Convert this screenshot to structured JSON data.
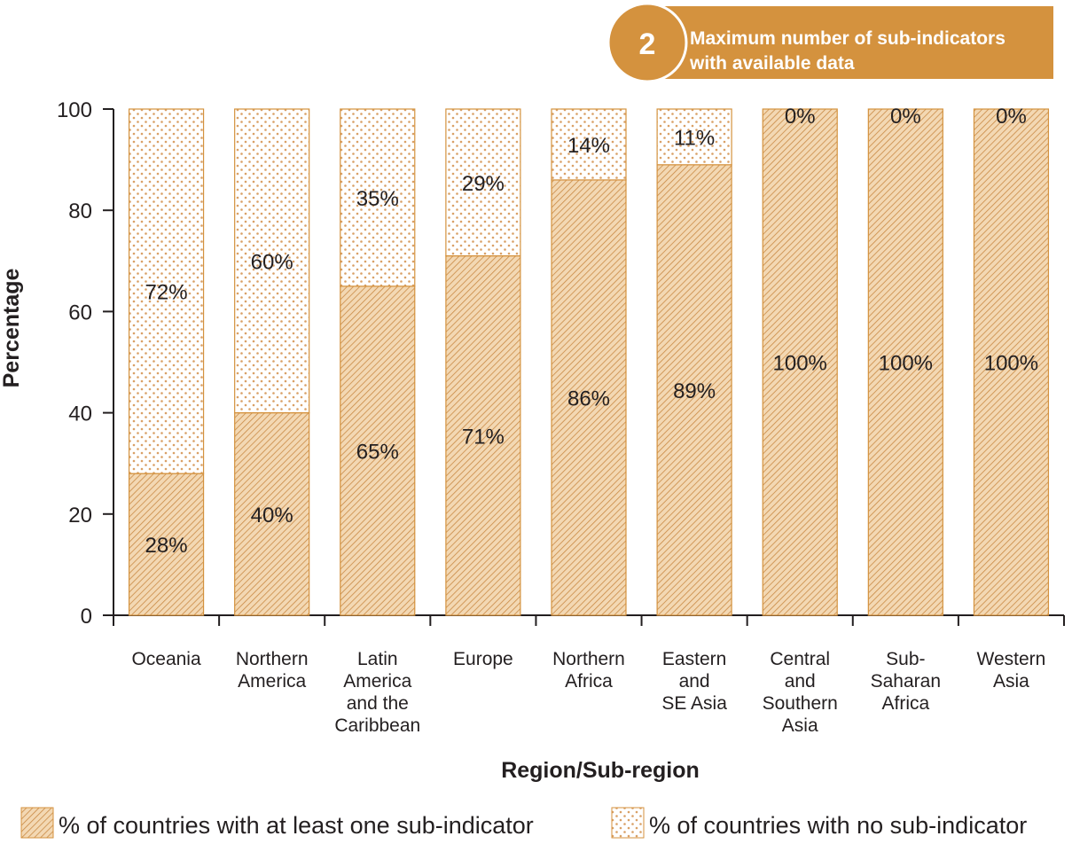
{
  "badge": {
    "number": "2",
    "text_line1": "Maximum number of sub-indicators",
    "text_line2": "with available data",
    "color": "#d4923e"
  },
  "chart_data": {
    "type": "bar",
    "stacked": true,
    "categories": [
      [
        "Oceania"
      ],
      [
        "Northern",
        "America"
      ],
      [
        "Latin",
        "America",
        "and the",
        "Caribbean"
      ],
      [
        "Europe"
      ],
      [
        "Northern",
        "Africa"
      ],
      [
        "Eastern",
        "and",
        "SE Asia"
      ],
      [
        "Central",
        "and",
        "Southern",
        "Asia"
      ],
      [
        "Sub-",
        "Saharan",
        "Africa"
      ],
      [
        "Western",
        "Asia"
      ]
    ],
    "series": [
      {
        "name": "% of countries with at least one sub-indicator",
        "values": [
          28,
          40,
          65,
          71,
          86,
          89,
          100,
          100,
          100
        ],
        "labels": [
          "28%",
          "40%",
          "65%",
          "71%",
          "86%",
          "89%",
          "100%",
          "100%",
          "100%"
        ],
        "pattern": "diagonal-hatch",
        "color": "#d4923e"
      },
      {
        "name": "% of countries with no sub-indicator",
        "values": [
          72,
          60,
          35,
          29,
          14,
          11,
          0,
          0,
          0
        ],
        "labels": [
          "72%",
          "60%",
          "35%",
          "29%",
          "14%",
          "11%",
          "0%",
          "0%",
          "0%"
        ],
        "pattern": "dots",
        "color": "#d4923e"
      }
    ],
    "xlabel": "Region/Sub-region",
    "ylabel": "Percentage",
    "ylim": [
      0,
      100
    ],
    "yticks": [
      0,
      20,
      40,
      60,
      80,
      100
    ],
    "grid": false,
    "legend_position": "bottom"
  }
}
